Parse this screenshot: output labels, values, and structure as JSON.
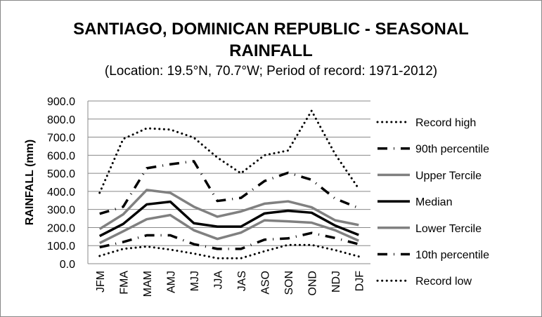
{
  "chart_data": {
    "type": "line",
    "title_line1": "SANTIAGO, DOMINICAN REPUBLIC - SEASONAL",
    "title_line2": "RAINFALL",
    "subtitle": "(Location: 19.5°N, 70.7°W; Period of record: 1971-2012)",
    "ylabel": "RAINFALL (mm)",
    "xlabel": "",
    "ylim": [
      0,
      900
    ],
    "yticks": [
      "0.0",
      "100.0",
      "200.0",
      "300.0",
      "400.0",
      "500.0",
      "600.0",
      "700.0",
      "800.0",
      "900.0"
    ],
    "grid": true,
    "legend_placement": "right",
    "categories": [
      "JFM",
      "FMA",
      "MAM",
      "AMJ",
      "MJJ",
      "JJA",
      "JAS",
      "ASO",
      "SON",
      "OND",
      "NDJ",
      "DJF"
    ],
    "series": [
      {
        "name": "Record high",
        "style": "dotted",
        "color": "#000000",
        "values": [
          392,
          690,
          749,
          742,
          697,
          587,
          500,
          600,
          626,
          846,
          606,
          415
        ]
      },
      {
        "name": "90th percentile",
        "style": "dashdot",
        "color": "#000000",
        "values": [
          276,
          315,
          528,
          550,
          567,
          347,
          364,
          457,
          503,
          464,
          360,
          308
        ]
      },
      {
        "name": "Upper Tercile",
        "style": "solid",
        "color": "#808080",
        "values": [
          192,
          273,
          408,
          392,
          315,
          260,
          289,
          332,
          345,
          312,
          240,
          214
        ]
      },
      {
        "name": "Median",
        "style": "solid",
        "color": "#000000",
        "values": [
          153,
          220,
          328,
          343,
          224,
          205,
          205,
          278,
          293,
          282,
          211,
          159
        ]
      },
      {
        "name": "Lower Tercile",
        "style": "solid",
        "color": "#808080",
        "values": [
          114,
          179,
          246,
          269,
          185,
          137,
          172,
          240,
          234,
          227,
          185,
          127
        ]
      },
      {
        "name": "10th percentile",
        "style": "dashdot",
        "color": "#000000",
        "values": [
          91,
          120,
          157,
          157,
          108,
          82,
          82,
          133,
          140,
          170,
          142,
          108
        ]
      },
      {
        "name": "Record low",
        "style": "dotted",
        "color": "#000000",
        "values": [
          43,
          82,
          95,
          78,
          56,
          30,
          30,
          69,
          104,
          104,
          75,
          40
        ]
      }
    ]
  }
}
